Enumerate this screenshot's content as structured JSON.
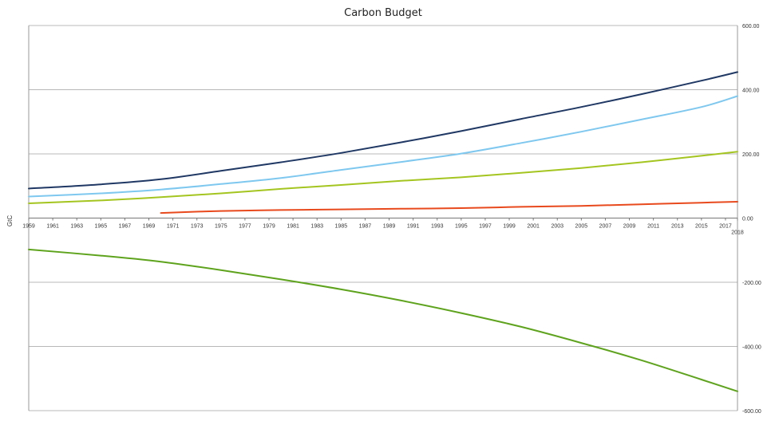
{
  "chart_data": {
    "type": "line",
    "title": "Carbon Budget",
    "ylabel": "GtC",
    "xlabel": "",
    "grid": true,
    "legend": "none",
    "ylim": [
      -600,
      600
    ],
    "y_ticks": [
      600,
      400,
      200,
      0,
      -200,
      -400,
      -600
    ],
    "y_tick_labels": [
      "600.00",
      "400.00",
      "200.00",
      "0.00",
      "-200.00",
      "-400.00",
      "-600.00"
    ],
    "x_range": [
      1959,
      2018
    ],
    "x_tick_labels": [
      "1959",
      "1961",
      "1963",
      "1965",
      "1967",
      "1969",
      "1971",
      "1973",
      "1975",
      "1977",
      "1979",
      "1981",
      "1983",
      "1985",
      "1987",
      "1989",
      "1991",
      "1993",
      "1995",
      "1997",
      "1999",
      "2001",
      "2003",
      "2005",
      "2007",
      "2009",
      "2011",
      "2013",
      "2015",
      "2017",
      "2018"
    ],
    "series": [
      {
        "color": "#1f3864",
        "x": [
          1959,
          1965,
          1970,
          1975,
          1980,
          1985,
          1990,
          1995,
          2000,
          2005,
          2010,
          2015,
          2018
        ],
        "values": [
          92,
          105,
          121,
          147,
          174,
          203,
          236,
          271,
          309,
          346,
          386,
          428,
          455
        ]
      },
      {
        "color": "#7ec8ef",
        "x": [
          1959,
          1965,
          1970,
          1975,
          1980,
          1985,
          1990,
          1995,
          2000,
          2005,
          2010,
          2015,
          2018
        ],
        "values": [
          67,
          77,
          89,
          106,
          125,
          150,
          175,
          201,
          234,
          269,
          307,
          346,
          380
        ]
      },
      {
        "color": "#a4c520",
        "x": [
          1959,
          1965,
          1970,
          1975,
          1980,
          1985,
          1990,
          1995,
          2000,
          2005,
          2010,
          2015,
          2018
        ],
        "values": [
          46,
          55,
          65,
          77,
          91,
          103,
          116,
          127,
          141,
          156,
          174,
          194,
          207
        ]
      },
      {
        "color": "#e8491d",
        "x": [
          1970,
          1975,
          1980,
          1985,
          1990,
          1995,
          2000,
          2005,
          2010,
          2015,
          2018
        ],
        "values": [
          16,
          22,
          25,
          27,
          29,
          31,
          35,
          38,
          43,
          48,
          51
        ]
      },
      {
        "color": "#5ea31c",
        "x": [
          1959,
          1965,
          1970,
          1975,
          1980,
          1985,
          1990,
          1995,
          2000,
          2005,
          2010,
          2015,
          2018
        ],
        "values": [
          -98,
          -117,
          -136,
          -162,
          -191,
          -222,
          -257,
          -296,
          -339,
          -389,
          -443,
          -503,
          -540
        ]
      }
    ]
  }
}
